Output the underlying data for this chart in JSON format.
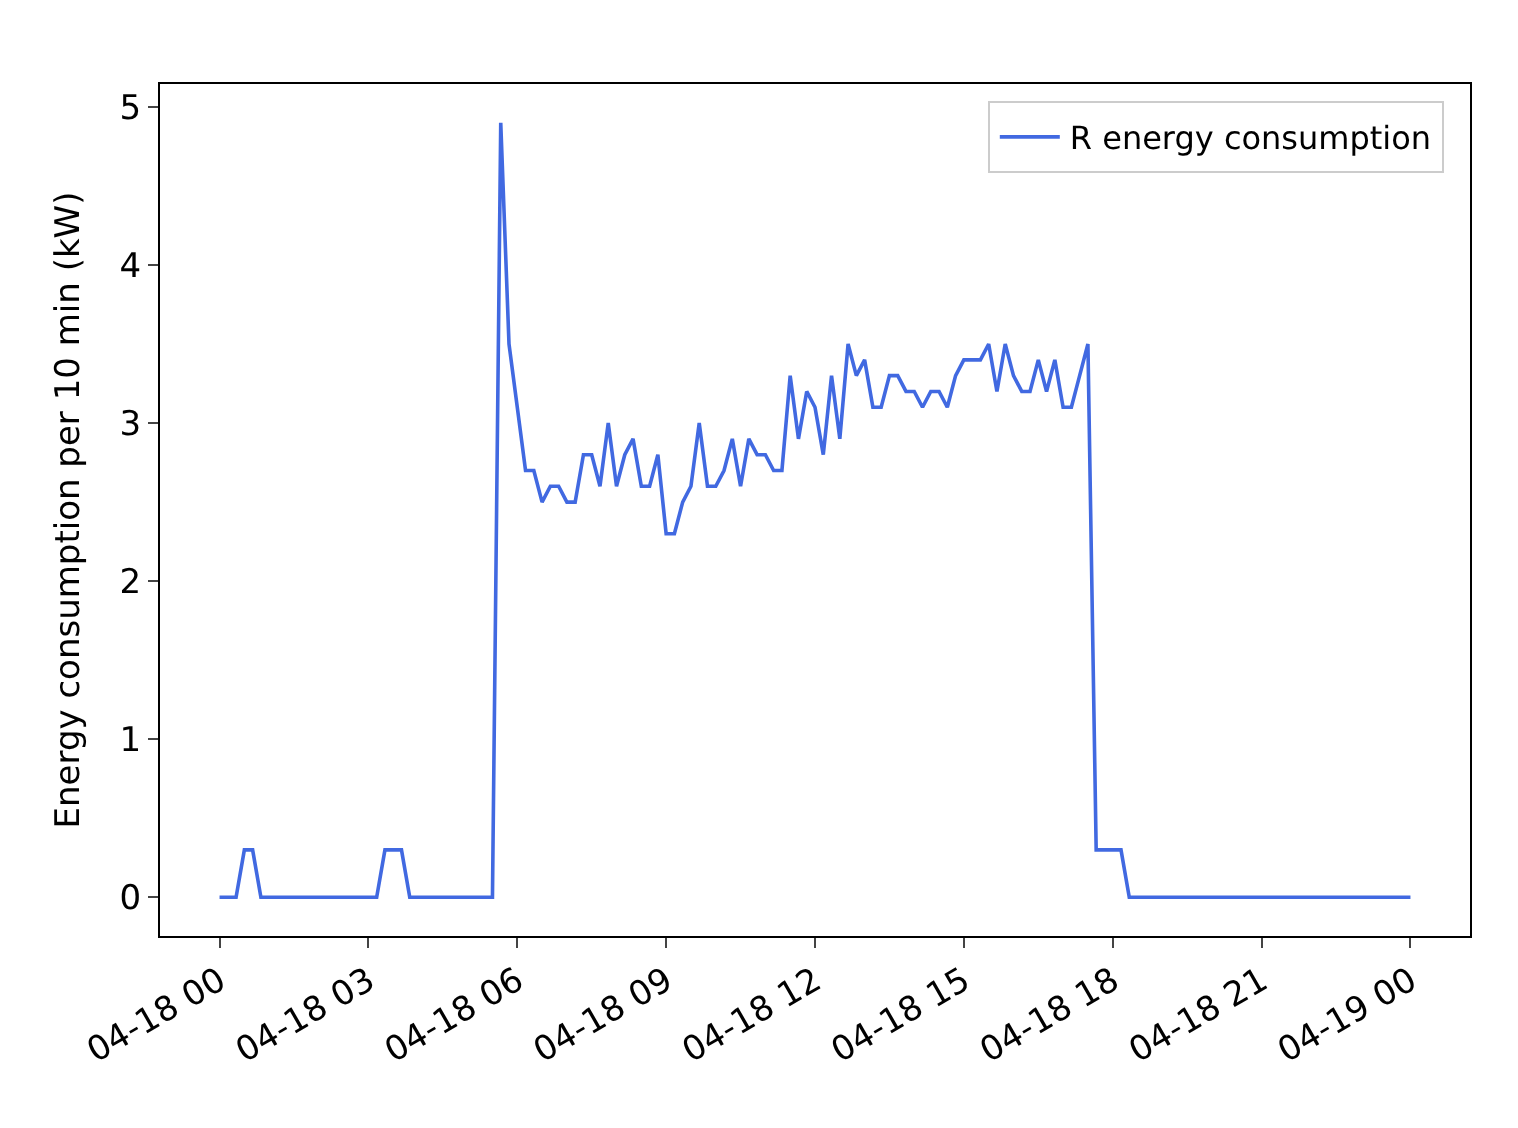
{
  "chart_data": {
    "type": "line",
    "ylabel": "Energy consumption per 10 min (kW)",
    "x": [
      "--04-18T00:00",
      "--04-18T00:20",
      "--04-18T00:30",
      "--04-18T00:40",
      "--04-18T00:50",
      "--04-18T03:10",
      "--04-18T03:20",
      "--04-18T03:40",
      "--04-18T03:50",
      "--04-18T05:30",
      "--04-18T05:40",
      "--04-18T05:50",
      "--04-18T06:00",
      "--04-18T06:10",
      "--04-18T06:20",
      "--04-18T06:30",
      "--04-18T06:40",
      "--04-18T06:50",
      "--04-18T07:00",
      "--04-18T07:10",
      "--04-18T07:20",
      "--04-18T07:30",
      "--04-18T07:40",
      "--04-18T07:50",
      "--04-18T08:00",
      "--04-18T08:10",
      "--04-18T08:20",
      "--04-18T08:30",
      "--04-18T08:40",
      "--04-18T08:50",
      "--04-18T09:00",
      "--04-18T09:10",
      "--04-18T09:20",
      "--04-18T09:30",
      "--04-18T09:40",
      "--04-18T09:50",
      "--04-18T10:00",
      "--04-18T10:10",
      "--04-18T10:20",
      "--04-18T10:30",
      "--04-18T10:40",
      "--04-18T10:50",
      "--04-18T11:00",
      "--04-18T11:10",
      "--04-18T11:20",
      "--04-18T11:30",
      "--04-18T11:40",
      "--04-18T11:50",
      "--04-18T12:00",
      "--04-18T12:10",
      "--04-18T12:20",
      "--04-18T12:30",
      "--04-18T12:40",
      "--04-18T12:50",
      "--04-18T13:00",
      "--04-18T13:10",
      "--04-18T13:20",
      "--04-18T13:30",
      "--04-18T13:40",
      "--04-18T13:50",
      "--04-18T14:00",
      "--04-18T14:10",
      "--04-18T14:20",
      "--04-18T14:30",
      "--04-18T14:40",
      "--04-18T14:50",
      "--04-18T15:00",
      "--04-18T15:10",
      "--04-18T15:20",
      "--04-18T15:30",
      "--04-18T15:40",
      "--04-18T15:50",
      "--04-18T16:00",
      "--04-18T16:10",
      "--04-18T16:20",
      "--04-18T16:30",
      "--04-18T16:40",
      "--04-18T16:50",
      "--04-18T17:00",
      "--04-18T17:10",
      "--04-18T17:20",
      "--04-18T17:30",
      "--04-18T17:40",
      "--04-18T18:10",
      "--04-18T18:20",
      "--04-19T00:00"
    ],
    "series": [
      {
        "name": "R energy consumption",
        "color": "#4169e1",
        "values": [
          0,
          0,
          0.3,
          0.3,
          0,
          0,
          0.3,
          0.3,
          0,
          0,
          4.9,
          3.5,
          3.1,
          2.7,
          2.7,
          2.5,
          2.6,
          2.6,
          2.5,
          2.5,
          2.8,
          2.8,
          2.6,
          3.0,
          2.6,
          2.8,
          2.9,
          2.6,
          2.6,
          2.8,
          2.3,
          2.3,
          2.5,
          2.6,
          3.0,
          2.6,
          2.6,
          2.7,
          2.9,
          2.6,
          2.9,
          2.8,
          2.8,
          2.7,
          2.7,
          3.3,
          2.9,
          3.2,
          3.1,
          2.8,
          3.3,
          2.9,
          3.5,
          3.3,
          3.4,
          3.1,
          3.1,
          3.3,
          3.3,
          3.2,
          3.2,
          3.1,
          3.2,
          3.2,
          3.1,
          3.3,
          3.4,
          3.4,
          3.4,
          3.5,
          3.2,
          3.5,
          3.3,
          3.2,
          3.2,
          3.4,
          3.2,
          3.4,
          3.1,
          3.1,
          3.3,
          3.5,
          0.3,
          0.3,
          0,
          0
        ]
      }
    ],
    "xlim": [
      "--04-17T22:48",
      "--04-19T01:12"
    ],
    "xticks": [
      {
        "value": "--04-18T00:00",
        "label": "04-18 00"
      },
      {
        "value": "--04-18T03:00",
        "label": "04-18 03"
      },
      {
        "value": "--04-18T06:00",
        "label": "04-18 06"
      },
      {
        "value": "--04-18T09:00",
        "label": "04-18 09"
      },
      {
        "value": "--04-18T12:00",
        "label": "04-18 12"
      },
      {
        "value": "--04-18T15:00",
        "label": "04-18 15"
      },
      {
        "value": "--04-18T18:00",
        "label": "04-18 18"
      },
      {
        "value": "--04-18T21:00",
        "label": "04-18 21"
      },
      {
        "value": "--04-19T00:00",
        "label": "04-19 00"
      }
    ],
    "ylim": [
      -0.245,
      5.145
    ],
    "yticks": [
      0,
      1,
      2,
      3,
      4,
      5
    ],
    "legend": "top right",
    "grid": false,
    "marker": "none",
    "line_style": "solid"
  }
}
